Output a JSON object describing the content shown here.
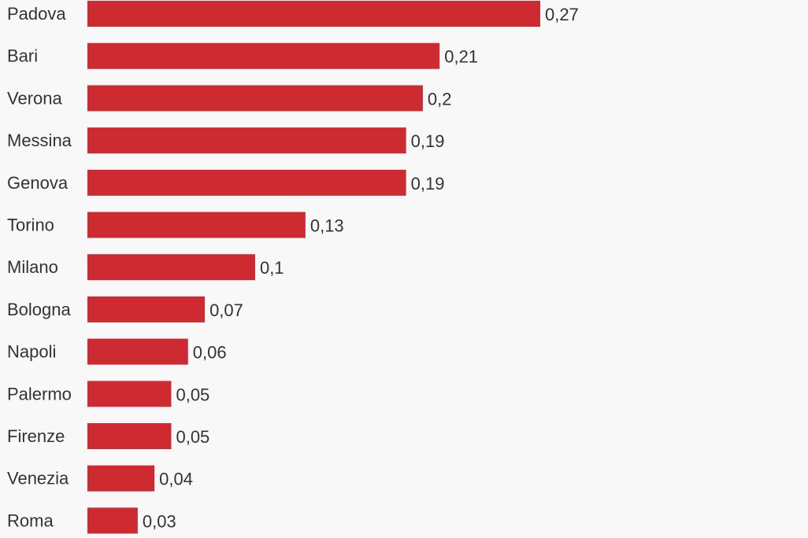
{
  "chart_data": {
    "type": "bar",
    "orientation": "horizontal",
    "title": "",
    "xlabel": "",
    "ylabel": "",
    "xlim": [
      0,
      0.27
    ],
    "grid": false,
    "legend": "none",
    "bar_color": "#cd2a32",
    "categories": [
      "Padova",
      "Bari",
      "Verona",
      "Messina",
      "Genova",
      "Torino",
      "Milano",
      "Bologna",
      "Napoli",
      "Palermo",
      "Firenze",
      "Venezia",
      "Roma"
    ],
    "values": [
      0.27,
      0.21,
      0.2,
      0.19,
      0.19,
      0.13,
      0.1,
      0.07,
      0.06,
      0.05,
      0.05,
      0.04,
      0.03
    ],
    "value_labels": [
      "0,27",
      "0,21",
      "0,2",
      "0,19",
      "0,19",
      "0,13",
      "0,1",
      "0,07",
      "0,06",
      "0,05",
      "0,05",
      "0,04",
      "0,03"
    ]
  }
}
